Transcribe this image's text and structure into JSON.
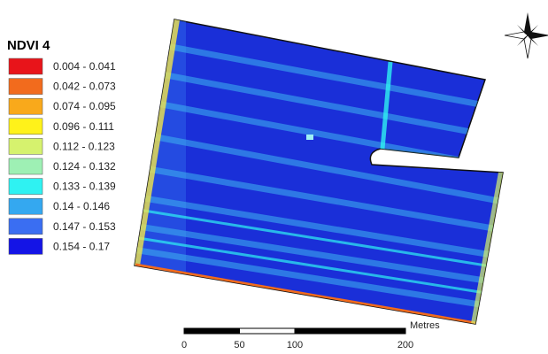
{
  "legend": {
    "title": "NDVI 4",
    "items": [
      {
        "label": "0.004 - 0.041",
        "color": "#e8141a"
      },
      {
        "label": "0.042 - 0.073",
        "color": "#f26b1d"
      },
      {
        "label": "0.074 - 0.095",
        "color": "#f9a91b"
      },
      {
        "label": "0.096 - 0.111",
        "color": "#fff21a"
      },
      {
        "label": "0.112 - 0.123",
        "color": "#d6f26e"
      },
      {
        "label": "0.124 - 0.132",
        "color": "#9ef0b4"
      },
      {
        "label": "0.133 - 0.139",
        "color": "#2ff2f2"
      },
      {
        "label": "0.14 - 0.146",
        "color": "#34a8f0"
      },
      {
        "label": "0.147 - 0.153",
        "color": "#3a6ef2"
      },
      {
        "label": "0.154 - 0.17",
        "color": "#1414e6"
      }
    ]
  },
  "scale_bar": {
    "unit": "Metres",
    "ticks": [
      0,
      50,
      100,
      200
    ]
  }
}
